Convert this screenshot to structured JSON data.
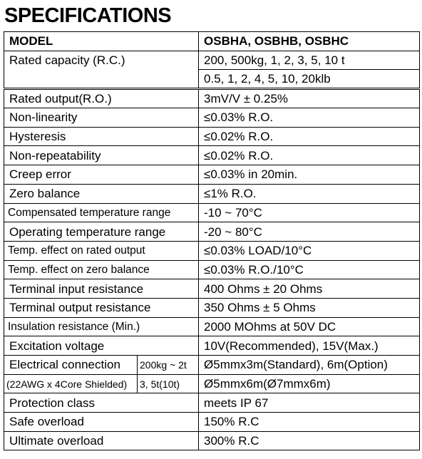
{
  "title": "SPECIFICATIONS",
  "table": {
    "header": [
      "MODEL",
      "OSBHA, OSBHB, OSBHC"
    ],
    "rows": [
      {
        "label": "Rated capacity (R.C.)",
        "values": [
          "200, 500kg, 1, 2, 3, 5, 10 t",
          "0.5, 1, 2, 4, 5, 10, 20klb"
        ]
      },
      {
        "label": "Rated output(R.O.)",
        "value": "3mV/V ± 0.25%"
      },
      {
        "label": "Non-linearity",
        "value": "≤0.03% R.O."
      },
      {
        "label": "Hysteresis",
        "value": "≤0.02% R.O."
      },
      {
        "label": "Non-repeatability",
        "value": "≤0.02% R.O."
      },
      {
        "label": "Creep error",
        "value": "≤0.03% in 20min."
      },
      {
        "label": "Zero balance",
        "value": "≤1% R.O."
      },
      {
        "label": "Compensated temperature range",
        "value": "-10 ~ 70°C"
      },
      {
        "label": "Operating temperature range",
        "value": "-20 ~ 80°C"
      },
      {
        "label": "Temp. effect on rated output",
        "value": "≤0.03% LOAD/10°C"
      },
      {
        "label": "Temp. effect on zero balance",
        "value": "≤0.03% R.O./10°C"
      },
      {
        "label": "Terminal input resistance",
        "value": "400 Ohms ± 20 Ohms"
      },
      {
        "label": "Terminal output resistance",
        "value": "350 Ohms ± 5 Ohms"
      },
      {
        "label": "Insulation resistance (Min.)",
        "value": "2000 MOhms at 50V DC"
      },
      {
        "label": "Excitation voltage",
        "value": "10V(Recommended), 15V(Max.)"
      },
      {
        "label": "Electrical connection",
        "note": "(22AWG x 4Core Shielded)",
        "ranges": [
          "200kg ~ 2t",
          "3, 5t(10t)"
        ],
        "values": [
          "Ø5mmx3m(Standard), 6m(Option)",
          "Ø5mmx6m(Ø7mmx6m)"
        ]
      },
      {
        "label": "Protection class",
        "value": "meets IP 67"
      },
      {
        "label": "Safe overload",
        "value": "150% R.C"
      },
      {
        "label": "Ultimate overload",
        "value": "300% R.C"
      }
    ]
  }
}
